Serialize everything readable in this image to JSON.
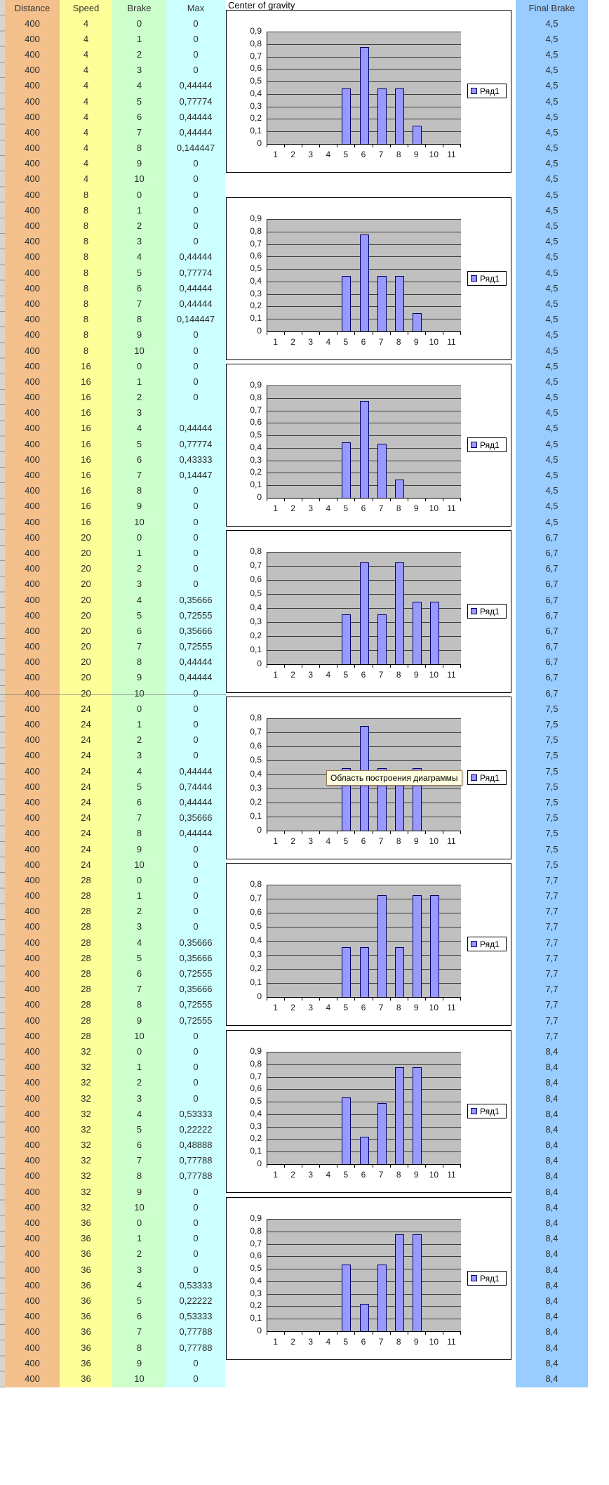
{
  "title": "Center of gravity",
  "columns": {
    "distance": "Distance",
    "speed": "Speed",
    "brake": "Brake",
    "max": "Max",
    "final_brake": "Final Brake"
  },
  "table": {
    "blocks": [
      {
        "distance": "400",
        "speed": "4",
        "final_brake": "4,5",
        "brakes": [
          "0",
          "1",
          "2",
          "3",
          "4",
          "5",
          "6",
          "7",
          "8",
          "9",
          "10"
        ],
        "max": [
          "0",
          "0",
          "0",
          "0",
          "0,44444",
          "0,77774",
          "0,44444",
          "0,44444",
          "0,144447",
          "0",
          "0"
        ]
      },
      {
        "distance": "400",
        "speed": "8",
        "final_brake": "4,5",
        "brakes": [
          "0",
          "1",
          "2",
          "3",
          "4",
          "5",
          "6",
          "7",
          "8",
          "9",
          "10"
        ],
        "max": [
          "0",
          "0",
          "0",
          "0",
          "0,44444",
          "0,77774",
          "0,44444",
          "0,44444",
          "0,144447",
          "0",
          "0"
        ]
      },
      {
        "distance": "400",
        "speed": "16",
        "final_brake": "4,5",
        "brakes": [
          "0",
          "1",
          "2",
          "3",
          "4",
          "5",
          "6",
          "7",
          "8",
          "9",
          "10"
        ],
        "max": [
          "0",
          "0",
          "0",
          "",
          "0,44444",
          "0,77774",
          "0,43333",
          "0,14447",
          "0",
          "0",
          "0"
        ]
      },
      {
        "distance": "400",
        "speed": "20",
        "final_brake": "6,7",
        "brakes": [
          "0",
          "1",
          "2",
          "3",
          "4",
          "5",
          "6",
          "7",
          "8",
          "9",
          "10"
        ],
        "max": [
          "0",
          "0",
          "0",
          "0",
          "0,35666",
          "0,72555",
          "0,35666",
          "0,72555",
          "0,44444",
          "0,44444",
          "0"
        ]
      },
      {
        "distance": "400",
        "speed": "24",
        "final_brake": "7,5",
        "brakes": [
          "0",
          "1",
          "2",
          "3",
          "4",
          "5",
          "6",
          "7",
          "8",
          "9",
          "10"
        ],
        "max": [
          "0",
          "0",
          "0",
          "0",
          "0,44444",
          "0,74444",
          "0,44444",
          "0,35666",
          "0,44444",
          "0",
          "0"
        ]
      },
      {
        "distance": "400",
        "speed": "28",
        "final_brake": "7,7",
        "brakes": [
          "0",
          "1",
          "2",
          "3",
          "4",
          "5",
          "6",
          "7",
          "8",
          "9",
          "10"
        ],
        "max": [
          "0",
          "0",
          "0",
          "0",
          "0,35666",
          "0,35666",
          "0,72555",
          "0,35666",
          "0,72555",
          "0,72555",
          "0"
        ]
      },
      {
        "distance": "400",
        "speed": "32",
        "final_brake": "8,4",
        "brakes": [
          "0",
          "1",
          "2",
          "3",
          "4",
          "5",
          "6",
          "7",
          "8",
          "9",
          "10"
        ],
        "max": [
          "0",
          "0",
          "0",
          "0",
          "0,53333",
          "0,22222",
          "0,48888",
          "0,77788",
          "0,77788",
          "0",
          "0"
        ]
      },
      {
        "distance": "400",
        "speed": "36",
        "final_brake": "8,4",
        "brakes": [
          "0",
          "1",
          "2",
          "3",
          "4",
          "5",
          "6",
          "7",
          "8",
          "9",
          "10"
        ],
        "max": [
          "0",
          "0",
          "0",
          "0",
          "0,53333",
          "0,22222",
          "0,53333",
          "0,77788",
          "0,77788",
          "0",
          "0"
        ]
      }
    ]
  },
  "chart_data": [
    {
      "type": "bar",
      "speed_block": "4",
      "categories": [
        "1",
        "2",
        "3",
        "4",
        "5",
        "6",
        "7",
        "8",
        "9",
        "10",
        "11"
      ],
      "values": [
        0,
        0,
        0,
        0,
        0.44444,
        0.77774,
        0.44444,
        0.44444,
        0.144447,
        0,
        0
      ],
      "ylim": [
        0,
        0.9
      ],
      "ystep": 0.1,
      "grid": true,
      "legend": "Ряд1",
      "legend_position": "right",
      "title": "",
      "xlabel": "",
      "ylabel": ""
    },
    {
      "type": "bar",
      "speed_block": "8",
      "categories": [
        "1",
        "2",
        "3",
        "4",
        "5",
        "6",
        "7",
        "8",
        "9",
        "10",
        "11"
      ],
      "values": [
        0,
        0,
        0,
        0,
        0.44444,
        0.77774,
        0.44444,
        0.44444,
        0.144447,
        0,
        0
      ],
      "ylim": [
        0,
        0.9
      ],
      "ystep": 0.1,
      "grid": true,
      "legend": "Ряд1",
      "legend_position": "right",
      "title": "",
      "xlabel": "",
      "ylabel": ""
    },
    {
      "type": "bar",
      "speed_block": "16",
      "categories": [
        "1",
        "2",
        "3",
        "4",
        "5",
        "6",
        "7",
        "8",
        "9",
        "10",
        "11"
      ],
      "values": [
        0,
        0,
        0,
        0,
        0.44444,
        0.77774,
        0.43333,
        0.14447,
        0,
        0,
        0
      ],
      "ylim": [
        0,
        0.9
      ],
      "ystep": 0.1,
      "grid": true,
      "legend": "Ряд1",
      "legend_position": "right",
      "title": "",
      "xlabel": "",
      "ylabel": ""
    },
    {
      "type": "bar",
      "speed_block": "20",
      "categories": [
        "1",
        "2",
        "3",
        "4",
        "5",
        "6",
        "7",
        "8",
        "9",
        "10",
        "11"
      ],
      "values": [
        0,
        0,
        0,
        0,
        0.35666,
        0.72555,
        0.35666,
        0.72555,
        0.44444,
        0.44444,
        0
      ],
      "ylim": [
        0,
        0.8
      ],
      "ystep": 0.1,
      "grid": true,
      "legend": "Ряд1",
      "legend_position": "right",
      "title": "",
      "xlabel": "",
      "ylabel": ""
    },
    {
      "type": "bar",
      "speed_block": "24",
      "categories": [
        "1",
        "2",
        "3",
        "4",
        "5",
        "6",
        "7",
        "8",
        "9",
        "10",
        "11"
      ],
      "values": [
        0,
        0,
        0,
        0,
        0.44444,
        0.74444,
        0.44444,
        0.35666,
        0.44444,
        0,
        0
      ],
      "ylim": [
        0,
        0.8
      ],
      "ystep": 0.1,
      "grid": true,
      "legend": "Ряд1",
      "legend_position": "right",
      "title": "",
      "xlabel": "",
      "ylabel": ""
    },
    {
      "type": "bar",
      "speed_block": "28",
      "categories": [
        "1",
        "2",
        "3",
        "4",
        "5",
        "6",
        "7",
        "8",
        "9",
        "10",
        "11"
      ],
      "values": [
        0,
        0,
        0,
        0,
        0.35666,
        0.35666,
        0.72555,
        0.35666,
        0.72555,
        0.72555,
        0
      ],
      "ylim": [
        0,
        0.8
      ],
      "ystep": 0.1,
      "grid": true,
      "legend": "Ряд1",
      "legend_position": "right",
      "title": "",
      "xlabel": "",
      "ylabel": ""
    },
    {
      "type": "bar",
      "speed_block": "32",
      "categories": [
        "1",
        "2",
        "3",
        "4",
        "5",
        "6",
        "7",
        "8",
        "9",
        "10",
        "11"
      ],
      "values": [
        0,
        0,
        0,
        0,
        0.53333,
        0.22222,
        0.48888,
        0.77788,
        0.77788,
        0,
        0
      ],
      "ylim": [
        0,
        0.9
      ],
      "ystep": 0.1,
      "grid": true,
      "legend": "Ряд1",
      "legend_position": "right",
      "title": "",
      "xlabel": "",
      "ylabel": ""
    },
    {
      "type": "bar",
      "speed_block": "36",
      "categories": [
        "1",
        "2",
        "3",
        "4",
        "5",
        "6",
        "7",
        "8",
        "9",
        "10",
        "11"
      ],
      "values": [
        0,
        0,
        0,
        0,
        0.53333,
        0.22222,
        0.53333,
        0.77788,
        0.77788,
        0,
        0
      ],
      "ylim": [
        0,
        0.9
      ],
      "ystep": 0.1,
      "grid": true,
      "legend": "Ряд1",
      "legend_position": "right",
      "title": "",
      "xlabel": "",
      "ylabel": ""
    }
  ],
  "tooltip": {
    "text": "Область построения диаграммы"
  },
  "colors": {
    "distance_col": "#F4C18C",
    "speed_col": "#FFFF99",
    "brake_col": "#CCFFCC",
    "max_col": "#CCFFFF",
    "final_col": "#99CCFF",
    "bar_fill": "#9999FF",
    "bar_border": "#000066",
    "plot_bg": "#C0C0C0",
    "tooltip_bg": "#FFFFE1",
    "tooltip_border": "#A0784A"
  }
}
